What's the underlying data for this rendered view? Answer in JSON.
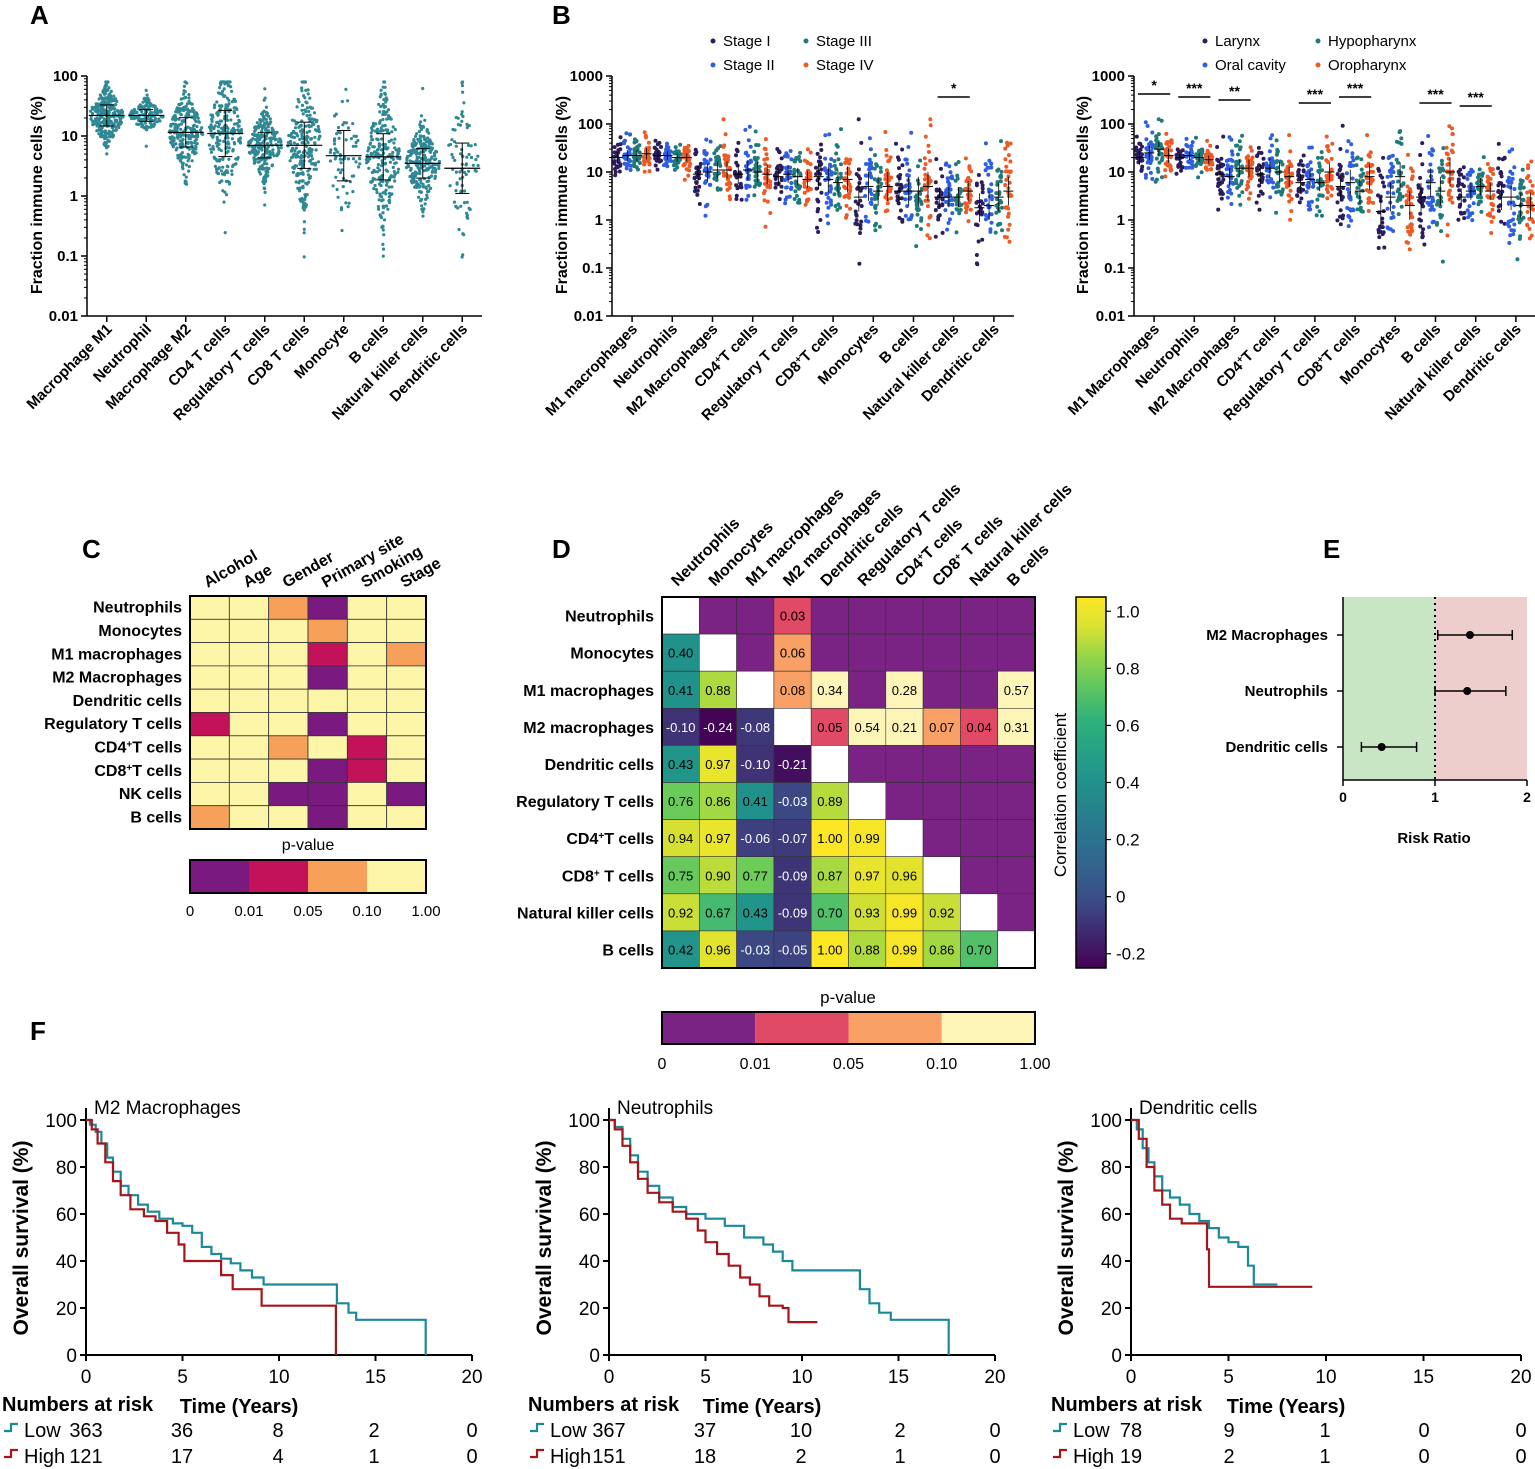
{
  "colors": {
    "teal": "#2f8894",
    "stage": [
      "#2b1c5c",
      "#2f5fe0",
      "#1f7a7a",
      "#ee5a24"
    ],
    "site": [
      "#2b1c5c",
      "#2f5fe0",
      "#1f7a7a",
      "#ee5a24"
    ],
    "pv": [
      "#7a1a80",
      "#c4125a",
      "#f7a05a",
      "#fdf5a8"
    ],
    "pvD": [
      "#7b2384",
      "#e04a66",
      "#f8a066",
      "#fdf5b8"
    ],
    "km_low": "#1a8a99",
    "km_high": "#a4161a",
    "forest_green": "#c9e6c4",
    "forest_red": "#eecdcd"
  },
  "panelA": {
    "letter": "A",
    "ylabel": "Fraction immune cells (%)",
    "yticks": [
      "100",
      "10",
      "1",
      "0.1",
      "0.01"
    ],
    "categories": [
      "Macrophage M1",
      "Neutrophil",
      "Macrophage M2",
      "CD4 T cells",
      "Regulatory T cells",
      "CD8 T cells",
      "Monocyte",
      "B cells",
      "Natural killer cells",
      "Dendritic cells"
    ]
  },
  "panelB": {
    "letter": "B",
    "ylabel": "Fraction immune cells (%)",
    "yticks": [
      "1000",
      "100",
      "10",
      "1",
      "0.1",
      "0.01"
    ],
    "legend": [
      "Stage I",
      "Stage II",
      "Stage III",
      "Stage IV"
    ],
    "sig_label": "*",
    "categories": [
      {
        "pre": "M1 macrophages",
        "sup": "",
        "post": ""
      },
      {
        "pre": "Neutrophils",
        "sup": "",
        "post": ""
      },
      {
        "pre": "M2 Macrophages",
        "sup": "",
        "post": ""
      },
      {
        "pre": "CD4",
        "sup": "+",
        "post": "T cells"
      },
      {
        "pre": "Regulatory T cells",
        "sup": "",
        "post": ""
      },
      {
        "pre": "CD8",
        "sup": "+",
        "post": "T cells"
      },
      {
        "pre": "Monocytes",
        "sup": "",
        "post": ""
      },
      {
        "pre": "B cells",
        "sup": "",
        "post": ""
      },
      {
        "pre": "Natural killer cells",
        "sup": "",
        "post": ""
      },
      {
        "pre": "Dendritic cells",
        "sup": "",
        "post": ""
      }
    ]
  },
  "panelB2": {
    "ylabel": "Fraction immune cells (%)",
    "yticks": [
      "1000",
      "100",
      "10",
      "1",
      "0.1",
      "0.01"
    ],
    "legend": [
      "Larynx",
      "Oral cavity",
      "Hypopharynx",
      "Oropharynx"
    ],
    "sig": [
      "*",
      "***",
      "**",
      "***",
      "***",
      "***",
      "***"
    ],
    "categories": [
      {
        "pre": "M1 Macrophages",
        "sup": "",
        "post": ""
      },
      {
        "pre": "Neutrophils",
        "sup": "",
        "post": ""
      },
      {
        "pre": "M2 Macrophages",
        "sup": "",
        "post": ""
      },
      {
        "pre": "CD4",
        "sup": "+",
        "post": "T cells"
      },
      {
        "pre": "Regulatory T cells",
        "sup": "",
        "post": ""
      },
      {
        "pre": "CD8",
        "sup": "+",
        "post": "T cells"
      },
      {
        "pre": "Monocytes",
        "sup": "",
        "post": ""
      },
      {
        "pre": "B cells",
        "sup": "",
        "post": ""
      },
      {
        "pre": "Natural killer cells",
        "sup": "",
        "post": ""
      },
      {
        "pre": "Dendritic cells",
        "sup": "",
        "post": ""
      }
    ]
  },
  "panelC": {
    "letter": "C",
    "columns": [
      "Alcohol",
      "Age",
      "Gender",
      "Primary site",
      "Smoking",
      "Stage"
    ],
    "rows": [
      {
        "pre": "Neutrophils",
        "sup": "",
        "post": ""
      },
      {
        "pre": "Monocytes",
        "sup": "",
        "post": ""
      },
      {
        "pre": "M1 macrophages",
        "sup": "",
        "post": ""
      },
      {
        "pre": "M2 Macrophages",
        "sup": "",
        "post": ""
      },
      {
        "pre": "Dendritic cells",
        "sup": "",
        "post": ""
      },
      {
        "pre": "Regulatory T cells",
        "sup": "",
        "post": ""
      },
      {
        "pre": "CD4",
        "sup": "+",
        "post": "T cells"
      },
      {
        "pre": "CD8",
        "sup": "+",
        "post": "T cells"
      },
      {
        "pre": "NK cells",
        "sup": "",
        "post": ""
      },
      {
        "pre": "B cells",
        "sup": "",
        "post": ""
      }
    ],
    "cell_category": [
      [
        3,
        3,
        2,
        0,
        3,
        3
      ],
      [
        3,
        3,
        3,
        2,
        3,
        3
      ],
      [
        3,
        3,
        3,
        1,
        3,
        2
      ],
      [
        3,
        3,
        3,
        0,
        3,
        3
      ],
      [
        3,
        3,
        3,
        3,
        3,
        3
      ],
      [
        1,
        3,
        3,
        0,
        3,
        3
      ],
      [
        3,
        3,
        2,
        3,
        1,
        3
      ],
      [
        3,
        3,
        3,
        0,
        1,
        3
      ],
      [
        3,
        3,
        0,
        0,
        3,
        0
      ],
      [
        2,
        3,
        3,
        0,
        3,
        3
      ]
    ],
    "pvalue_title": "p-value",
    "pvalue_ticks": [
      "0",
      "0.01",
      "0.05",
      "0.10",
      "1.00"
    ]
  },
  "panelD": {
    "letter": "D",
    "columns": [
      {
        "pre": "Neutrophils",
        "sup": "",
        "post": ""
      },
      {
        "pre": "Monocytes",
        "sup": "",
        "post": ""
      },
      {
        "pre": "M1 macrophages",
        "sup": "",
        "post": ""
      },
      {
        "pre": "M2 macrophages",
        "sup": "",
        "post": ""
      },
      {
        "pre": "Dendritic cells",
        "sup": "",
        "post": ""
      },
      {
        "pre": "Regulatory T cells",
        "sup": "",
        "post": ""
      },
      {
        "pre": "CD4",
        "sup": "+",
        "post": "T cells"
      },
      {
        "pre": "CD8",
        "sup": "+",
        "post": " T cells"
      },
      {
        "pre": "Natural killer cells",
        "sup": "",
        "post": ""
      },
      {
        "pre": "B cells",
        "sup": "",
        "post": ""
      }
    ],
    "rows": [
      {
        "pre": "Neutrophils",
        "sup": "",
        "post": ""
      },
      {
        "pre": "Monocytes",
        "sup": "",
        "post": ""
      },
      {
        "pre": "M1 macrophages",
        "sup": "",
        "post": ""
      },
      {
        "pre": "M2 macrophages",
        "sup": "",
        "post": ""
      },
      {
        "pre": "Dendritic cells",
        "sup": "",
        "post": ""
      },
      {
        "pre": "Regulatory T cells",
        "sup": "",
        "post": ""
      },
      {
        "pre": "CD4",
        "sup": "+",
        "post": "T cells"
      },
      {
        "pre": "CD8",
        "sup": "+",
        "post": " T cells"
      },
      {
        "pre": "Natural killer cells",
        "sup": "",
        "post": ""
      },
      {
        "pre": "B cells",
        "sup": "",
        "post": ""
      }
    ],
    "correlation": [
      [
        null
      ],
      [
        0.4
      ],
      [
        0.41,
        0.88
      ],
      [
        -0.1,
        -0.24,
        -0.08
      ],
      [
        0.43,
        0.97,
        -0.1,
        -0.21
      ],
      [
        0.76,
        0.86,
        0.41,
        -0.03,
        0.89
      ],
      [
        0.94,
        0.97,
        -0.06,
        -0.07,
        1.0,
        0.99
      ],
      [
        0.75,
        0.9,
        0.77,
        -0.09,
        0.87,
        0.97,
        0.96
      ],
      [
        0.92,
        0.67,
        0.43,
        -0.09,
        0.7,
        0.93,
        0.99,
        0.92
      ],
      [
        0.42,
        0.96,
        -0.03,
        -0.05,
        1.0,
        0.88,
        0.99,
        0.86,
        0.7
      ]
    ],
    "correlation_text": [
      [],
      [
        "0.40"
      ],
      [
        "0.41",
        "0.88"
      ],
      [
        "-0.10",
        "-0.24",
        "-0.08"
      ],
      [
        "0.43",
        "0.97",
        "-0.10",
        "-0.21"
      ],
      [
        "0.76",
        "0.86",
        "0.41",
        "-0.03",
        "0.89"
      ],
      [
        "0.94",
        "0.97",
        "-0.06",
        "-0.07",
        "1.00",
        "0.99"
      ],
      [
        "0.75",
        "0.90",
        "0.77",
        "-0.09",
        "0.87",
        "0.97",
        "0.96"
      ],
      [
        "0.92",
        "0.67",
        "0.43",
        "-0.09",
        "0.70",
        "0.93",
        "0.99",
        "0.92"
      ],
      [
        "0.42",
        "0.96",
        "-0.03",
        "-0.05",
        "1.00",
        "0.88",
        "0.99",
        "0.86",
        "0.70"
      ]
    ],
    "upper_pvalues": [
      {
        "row": 0,
        "col": 3,
        "cat": 1,
        "text": "0.03"
      },
      {
        "row": 1,
        "col": 3,
        "cat": 2,
        "text": "0.06"
      },
      {
        "row": 2,
        "col": 3,
        "cat": 2,
        "text": "0.08"
      },
      {
        "row": 2,
        "col": 4,
        "cat": 3,
        "text": "0.34"
      },
      {
        "row": 2,
        "col": 6,
        "cat": 3,
        "text": "0.28"
      },
      {
        "row": 2,
        "col": 9,
        "cat": 3,
        "text": "0.57"
      },
      {
        "row": 3,
        "col": 4,
        "cat": 1,
        "text": "0.05"
      },
      {
        "row": 3,
        "col": 5,
        "cat": 3,
        "text": "0.54"
      },
      {
        "row": 3,
        "col": 6,
        "cat": 3,
        "text": "0.21"
      },
      {
        "row": 3,
        "col": 7,
        "cat": 2,
        "text": "0.07"
      },
      {
        "row": 3,
        "col": 8,
        "cat": 1,
        "text": "0.04"
      },
      {
        "row": 3,
        "col": 9,
        "cat": 3,
        "text": "0.31"
      }
    ],
    "colorbar_title": "Correlation coefficient",
    "colorbar_ticks": [
      "1.0",
      "0.8",
      "0.6",
      "0.4",
      "0.2",
      "0",
      "-0.2"
    ],
    "pvalue_title": "p-value",
    "pvalue_ticks": [
      "0",
      "0.01",
      "0.05",
      "0.10",
      "1.00"
    ]
  },
  "panelE": {
    "letter": "E",
    "xlabel": "Risk Ratio",
    "xticks": [
      "0",
      "1",
      "2"
    ],
    "xlim": [
      0,
      2
    ],
    "rows": [
      {
        "label": "M2 Macrophages",
        "rr": 1.38,
        "lo": 1.03,
        "hi": 1.84
      },
      {
        "label": "Neutrophils",
        "rr": 1.35,
        "lo": 1.0,
        "hi": 1.77
      },
      {
        "label": "Dendritic cells",
        "rr": 0.42,
        "lo": 0.2,
        "hi": 0.8
      }
    ]
  },
  "panelF": {
    "letter": "F",
    "ylabel": "Overall survival (%)",
    "xlabel": "Time (Years)",
    "yticks": [
      "0",
      "20",
      "40",
      "60",
      "80",
      "100"
    ],
    "xticks": [
      "0",
      "5",
      "10",
      "15",
      "20"
    ],
    "risk_title": "Numbers at risk",
    "plots": [
      {
        "title": "M2 Macrophages",
        "low": [
          [
            0,
            100
          ],
          [
            0.2,
            98
          ],
          [
            0.5,
            95
          ],
          [
            0.8,
            90
          ],
          [
            1.1,
            84
          ],
          [
            1.4,
            78
          ],
          [
            1.8,
            72
          ],
          [
            2.2,
            68
          ],
          [
            2.7,
            64
          ],
          [
            3.2,
            61
          ],
          [
            3.8,
            58
          ],
          [
            4.5,
            56
          ],
          [
            5.0,
            55
          ],
          [
            5.5,
            52
          ],
          [
            6.0,
            46
          ],
          [
            6.5,
            43
          ],
          [
            7.0,
            41
          ],
          [
            7.5,
            39
          ],
          [
            8.0,
            36
          ],
          [
            8.6,
            33
          ],
          [
            9.2,
            30
          ],
          [
            12.5,
            30
          ],
          [
            13.0,
            22
          ],
          [
            13.6,
            18
          ],
          [
            14.0,
            15
          ],
          [
            17.5,
            15
          ],
          [
            17.6,
            0
          ]
        ],
        "high": [
          [
            0,
            100
          ],
          [
            0.3,
            96
          ],
          [
            0.6,
            90
          ],
          [
            1.0,
            82
          ],
          [
            1.4,
            74
          ],
          [
            1.8,
            68
          ],
          [
            2.3,
            62
          ],
          [
            3.0,
            59
          ],
          [
            3.6,
            57
          ],
          [
            4.2,
            52
          ],
          [
            4.8,
            47
          ],
          [
            5.1,
            40
          ],
          [
            7.0,
            34
          ],
          [
            7.6,
            28
          ],
          [
            9.0,
            28
          ],
          [
            9.1,
            21
          ],
          [
            12.9,
            21
          ],
          [
            12.95,
            0
          ]
        ],
        "risk_low": [
          "363",
          "36",
          "8",
          "2",
          "0"
        ],
        "risk_high": [
          "121",
          "17",
          "4",
          "1",
          "0"
        ]
      },
      {
        "title": "Neutrophils",
        "low": [
          [
            0,
            100
          ],
          [
            0.3,
            97
          ],
          [
            0.7,
            92
          ],
          [
            1.1,
            85
          ],
          [
            1.5,
            78
          ],
          [
            2.0,
            72
          ],
          [
            2.6,
            67
          ],
          [
            3.3,
            63
          ],
          [
            4.0,
            60
          ],
          [
            5.0,
            58
          ],
          [
            6.0,
            55
          ],
          [
            7.0,
            50
          ],
          [
            8.0,
            47
          ],
          [
            8.5,
            44
          ],
          [
            9.0,
            40
          ],
          [
            9.5,
            36
          ],
          [
            12.5,
            36
          ],
          [
            13.0,
            28
          ],
          [
            13.5,
            22
          ],
          [
            14.0,
            18
          ],
          [
            14.6,
            15
          ],
          [
            17.5,
            15
          ],
          [
            17.6,
            0
          ]
        ],
        "high": [
          [
            0,
            100
          ],
          [
            0.3,
            96
          ],
          [
            0.7,
            89
          ],
          [
            1.1,
            82
          ],
          [
            1.5,
            75
          ],
          [
            2.0,
            69
          ],
          [
            2.6,
            65
          ],
          [
            3.3,
            61
          ],
          [
            4.0,
            58
          ],
          [
            4.6,
            53
          ],
          [
            5.0,
            48
          ],
          [
            5.6,
            43
          ],
          [
            6.2,
            38
          ],
          [
            6.8,
            33
          ],
          [
            7.3,
            30
          ],
          [
            7.8,
            25
          ],
          [
            8.3,
            21
          ],
          [
            9.0,
            20
          ],
          [
            9.3,
            14
          ],
          [
            10.8,
            14
          ]
        ],
        "risk_low": [
          "367",
          "37",
          "10",
          "2",
          "0"
        ],
        "risk_high": [
          "151",
          "18",
          "2",
          "1",
          "0"
        ]
      },
      {
        "title": "Dendritic cells",
        "low": [
          [
            0,
            100
          ],
          [
            0.3,
            96
          ],
          [
            0.6,
            88
          ],
          [
            0.9,
            82
          ],
          [
            1.2,
            76
          ],
          [
            1.6,
            70
          ],
          [
            2.0,
            67
          ],
          [
            2.5,
            64
          ],
          [
            3.0,
            60
          ],
          [
            3.5,
            57
          ],
          [
            4.0,
            54
          ],
          [
            4.5,
            50
          ],
          [
            5.0,
            48
          ],
          [
            5.5,
            46
          ],
          [
            6.0,
            38
          ],
          [
            6.3,
            30
          ],
          [
            7.5,
            30
          ]
        ],
        "high": [
          [
            0,
            100
          ],
          [
            0.4,
            92
          ],
          [
            0.8,
            80
          ],
          [
            1.2,
            70
          ],
          [
            1.6,
            64
          ],
          [
            2.0,
            58
          ],
          [
            2.6,
            56
          ],
          [
            3.6,
            56
          ],
          [
            3.9,
            45
          ],
          [
            4.0,
            29
          ],
          [
            9.3,
            29
          ]
        ],
        "risk_low": [
          "78",
          "9",
          "1",
          "0",
          "0"
        ],
        "risk_high": [
          "19",
          "2",
          "1",
          "0",
          "0"
        ]
      }
    ],
    "low_label": "Low",
    "high_label": "High"
  }
}
